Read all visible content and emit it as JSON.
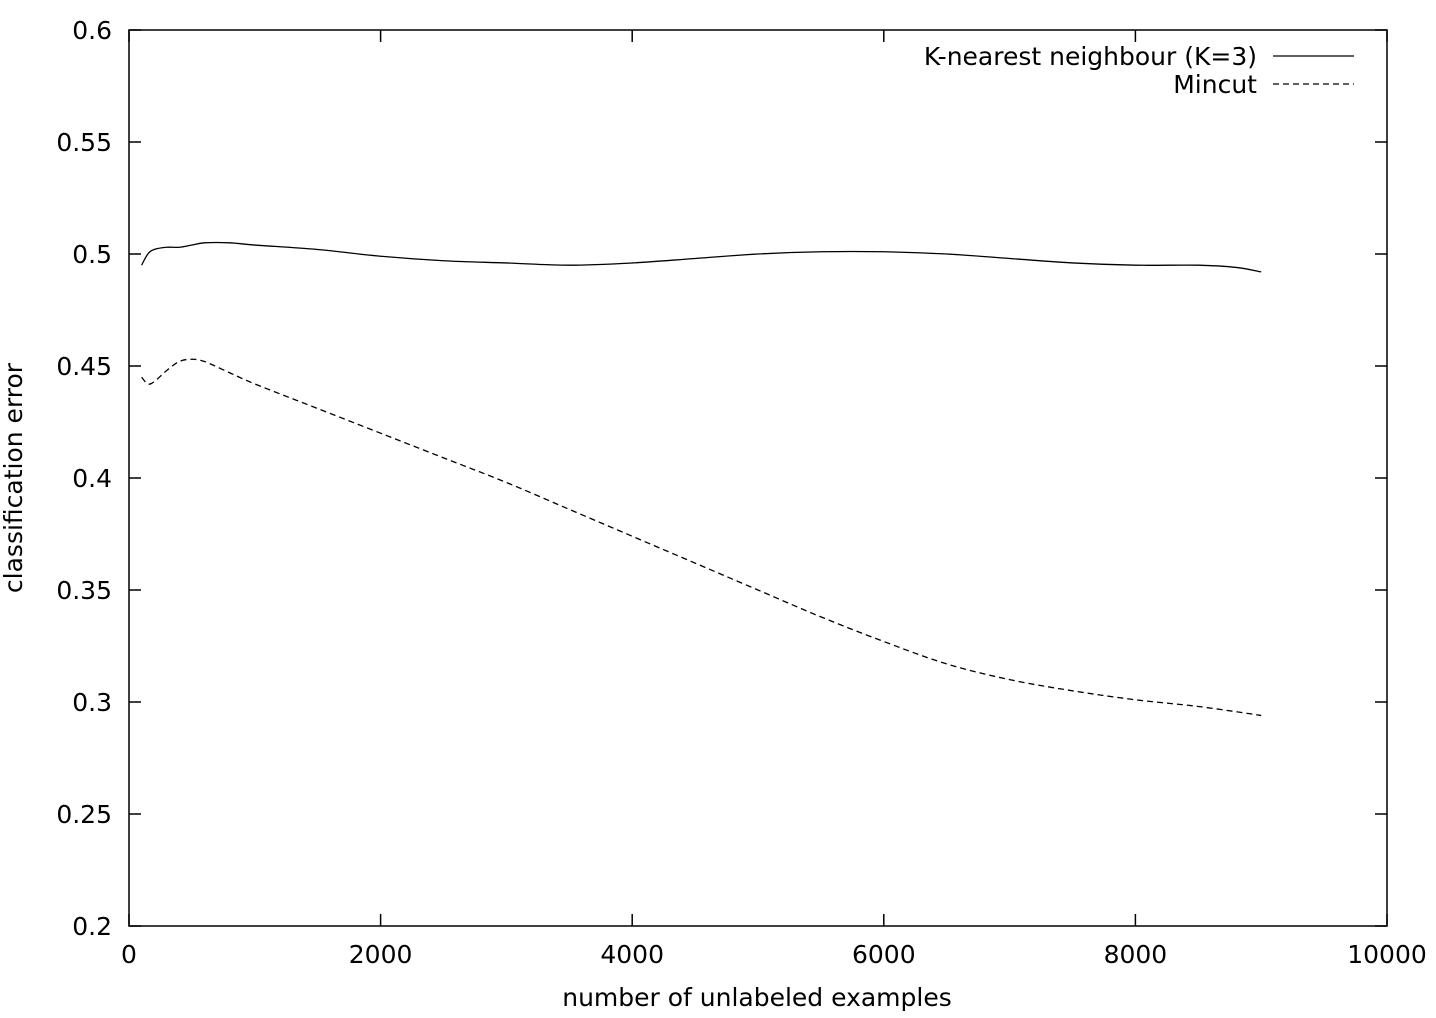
{
  "chart_data": {
    "type": "line",
    "title": "",
    "xlabel": "number of unlabeled examples",
    "ylabel": "classification error",
    "xlim": [
      0,
      10000
    ],
    "ylim": [
      0.2,
      0.6
    ],
    "xticks": [
      0,
      2000,
      4000,
      6000,
      8000,
      10000
    ],
    "yticks": [
      0.2,
      0.25,
      0.3,
      0.35,
      0.4,
      0.45,
      0.5,
      0.55,
      0.6
    ],
    "xtick_labels": [
      "0",
      "2000",
      "4000",
      "6000",
      "8000",
      "10000"
    ],
    "ytick_labels": [
      "0.2",
      "0.25",
      "0.3",
      "0.35",
      "0.4",
      "0.45",
      "0.5",
      "0.55",
      "0.6"
    ],
    "grid": false,
    "legend_position": "top-right",
    "series": [
      {
        "name": "K-nearest neighbour (K=3)",
        "style": "solid",
        "color": "#000000",
        "x": [
          100,
          150,
          200,
          300,
          400,
          500,
          600,
          800,
          1000,
          1500,
          2000,
          2500,
          3000,
          3500,
          4000,
          4500,
          5000,
          5500,
          6000,
          6500,
          7000,
          7500,
          8000,
          8500,
          8800,
          9000
        ],
        "y": [
          0.495,
          0.5,
          0.502,
          0.503,
          0.503,
          0.504,
          0.505,
          0.505,
          0.504,
          0.502,
          0.499,
          0.497,
          0.496,
          0.495,
          0.496,
          0.498,
          0.5,
          0.501,
          0.501,
          0.5,
          0.498,
          0.496,
          0.495,
          0.495,
          0.494,
          0.492
        ]
      },
      {
        "name": "Mincut",
        "style": "dashed",
        "color": "#000000",
        "x": [
          100,
          150,
          200,
          300,
          400,
          500,
          600,
          800,
          1000,
          1500,
          2000,
          2500,
          3000,
          3500,
          4000,
          4500,
          5000,
          5500,
          6000,
          6500,
          7000,
          7500,
          8000,
          8500,
          9000
        ],
        "y": [
          0.445,
          0.442,
          0.443,
          0.448,
          0.452,
          0.453,
          0.452,
          0.447,
          0.442,
          0.431,
          0.42,
          0.409,
          0.398,
          0.386,
          0.374,
          0.362,
          0.35,
          0.338,
          0.327,
          0.317,
          0.31,
          0.305,
          0.301,
          0.298,
          0.294
        ]
      }
    ]
  }
}
